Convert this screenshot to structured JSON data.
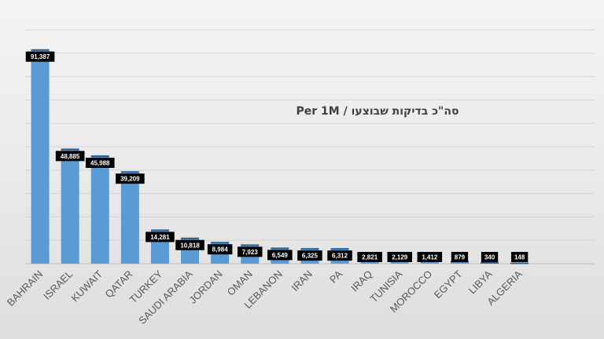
{
  "chart_data": {
    "type": "bar",
    "title": "סה\"כ בדיקות שבוצעו / Per 1M",
    "categories": [
      "BAHRAIN",
      "ISRAEL",
      "KUWAIT",
      "QATAR",
      "TURKEY",
      "SAUDI ARABIA",
      "JORDAN",
      "OMAN",
      "LEBANON",
      "IRAN",
      "PA",
      "IRAQ",
      "TUNISIA",
      "MOROCCO",
      "EGYPT",
      "LIBYA",
      "ALGERIA"
    ],
    "values": [
      91387,
      48885,
      45988,
      39209,
      14281,
      10818,
      8984,
      7923,
      6549,
      6325,
      6312,
      2821,
      2129,
      1412,
      879,
      340,
      148
    ],
    "data_labels": [
      "91,387",
      "48,885",
      "45,988",
      "39,209",
      "14,281",
      "10,818",
      "8,984",
      "7,923",
      "6,549",
      "6,325",
      "6,312",
      "2,821",
      "2,129",
      "1,412",
      "879",
      "340",
      "148"
    ],
    "ylim": [
      0,
      100000
    ],
    "grid": true,
    "bar_color": "#5b9bd5",
    "label_box_color": "#000000"
  }
}
